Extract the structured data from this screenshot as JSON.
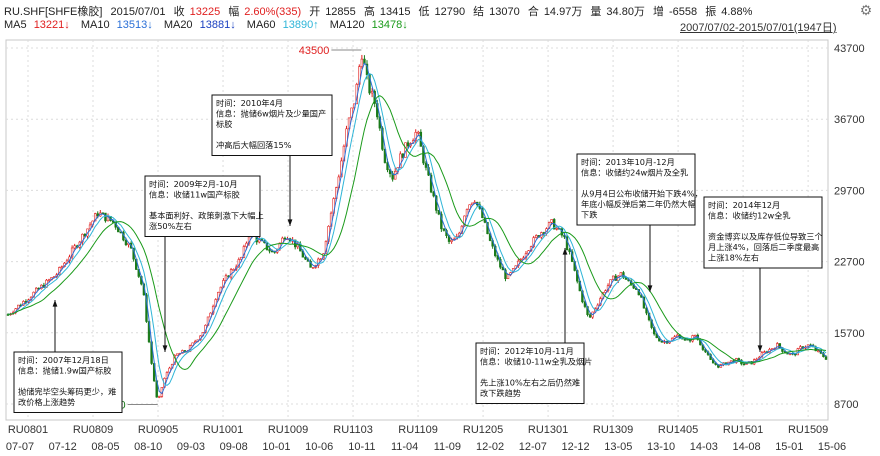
{
  "header": {
    "symbol": "RU.SHF[SHFE橡胶]",
    "date": "2015/07/01",
    "close_label": "收",
    "close_value": "13225",
    "change_label": "幅",
    "change_value": "2.60%(335)",
    "open_label": "开",
    "open_value": "12855",
    "high_label": "高",
    "high_value": "13415",
    "low_label": "低",
    "low_value": "12790",
    "settle_label": "结",
    "settle_value": "13070",
    "amount_label": "合",
    "amount_value": "14.97万",
    "volume_label": "量",
    "volume_value": "34.80万",
    "oi_label": "增",
    "oi_value": "-6558",
    "amp_label": "振",
    "amp_value": "4.88%",
    "range": "2007/07/02-2015/07/01(1947日)"
  },
  "ma": {
    "ma5_label": "MA5",
    "ma5_value": "13221↓",
    "ma10_label": "MA10",
    "ma10_value": "13513↓",
    "ma20_label": "MA20",
    "ma20_value": "13881↓",
    "ma60_label": "MA60",
    "ma60_value": "13890↑",
    "ma120_label": "MA120",
    "ma120_value": "13478↓"
  },
  "colors": {
    "up": "#e02020",
    "down": "#1a7a1a",
    "ma5": "#e02020",
    "ma10": "#2a6fd6",
    "ma20": "#1a3fc0",
    "ma60": "#2fb5d8",
    "ma120": "#1a9a1a",
    "grid": "#dcdcdc",
    "axis_text": "#333333"
  },
  "chart_data": {
    "type": "candlestick",
    "y_ticks": [
      "43700",
      "36700",
      "29700",
      "22700",
      "15700",
      "8700"
    ],
    "ylim": [
      8700,
      43700
    ],
    "contract_labels": [
      "RU0801",
      "RU0809",
      "RU0905",
      "RU1001",
      "RU1009",
      "RU1103",
      "RU1109",
      "RU1205",
      "RU1301",
      "RU1309",
      "RU1405",
      "RU1501",
      "RU1509"
    ],
    "date_labels": [
      "07-07",
      "07-12",
      "08-05",
      "08-10",
      "09-03",
      "09-08",
      "10-01",
      "10-06",
      "10-11",
      "11-04",
      "11-09",
      "12-02",
      "12-07",
      "12-12",
      "13-05",
      "13-10",
      "14-03",
      "14-08",
      "15-01",
      "15-06"
    ],
    "max_label": "43500",
    "min_label": "8650",
    "path": [
      [
        0,
        17500
      ],
      [
        0.03,
        19500
      ],
      [
        0.06,
        21500
      ],
      [
        0.085,
        24500
      ],
      [
        0.11,
        27500
      ],
      [
        0.13,
        26500
      ],
      [
        0.15,
        24000
      ],
      [
        0.165,
        20000
      ],
      [
        0.175,
        13000
      ],
      [
        0.183,
        8650
      ],
      [
        0.19,
        11000
      ],
      [
        0.205,
        13500
      ],
      [
        0.22,
        14000
      ],
      [
        0.24,
        16000
      ],
      [
        0.255,
        19500
      ],
      [
        0.27,
        21500
      ],
      [
        0.285,
        23000
      ],
      [
        0.295,
        25500
      ],
      [
        0.31,
        24500
      ],
      [
        0.325,
        23500
      ],
      [
        0.34,
        25500
      ],
      [
        0.355,
        24000
      ],
      [
        0.37,
        22000
      ],
      [
        0.385,
        23500
      ],
      [
        0.395,
        27500
      ],
      [
        0.405,
        31500
      ],
      [
        0.415,
        36000
      ],
      [
        0.425,
        39000
      ],
      [
        0.432,
        43500
      ],
      [
        0.44,
        40000
      ],
      [
        0.45,
        38000
      ],
      [
        0.46,
        33000
      ],
      [
        0.47,
        31000
      ],
      [
        0.48,
        33000
      ],
      [
        0.49,
        34500
      ],
      [
        0.5,
        35500
      ],
      [
        0.51,
        32000
      ],
      [
        0.52,
        29000
      ],
      [
        0.53,
        26000
      ],
      [
        0.54,
        24500
      ],
      [
        0.55,
        25000
      ],
      [
        0.56,
        28000
      ],
      [
        0.57,
        29000
      ],
      [
        0.58,
        27000
      ],
      [
        0.59,
        24500
      ],
      [
        0.6,
        22500
      ],
      [
        0.61,
        21000
      ],
      [
        0.62,
        22000
      ],
      [
        0.635,
        24000
      ],
      [
        0.65,
        25500
      ],
      [
        0.665,
        26500
      ],
      [
        0.68,
        25000
      ],
      [
        0.69,
        22500
      ],
      [
        0.7,
        19500
      ],
      [
        0.71,
        17000
      ],
      [
        0.72,
        18500
      ],
      [
        0.73,
        20000
      ],
      [
        0.74,
        21000
      ],
      [
        0.75,
        21500
      ],
      [
        0.76,
        20500
      ],
      [
        0.77,
        20000
      ],
      [
        0.78,
        17500
      ],
      [
        0.79,
        15500
      ],
      [
        0.8,
        14800
      ],
      [
        0.81,
        15000
      ],
      [
        0.82,
        15500
      ],
      [
        0.83,
        14800
      ],
      [
        0.84,
        15500
      ],
      [
        0.85,
        14200
      ],
      [
        0.86,
        12800
      ],
      [
        0.87,
        12400
      ],
      [
        0.88,
        12800
      ],
      [
        0.89,
        13000
      ],
      [
        0.9,
        12600
      ],
      [
        0.91,
        12800
      ],
      [
        0.92,
        13500
      ],
      [
        0.93,
        14000
      ],
      [
        0.94,
        14500
      ],
      [
        0.95,
        13800
      ],
      [
        0.96,
        13500
      ],
      [
        0.97,
        14300
      ],
      [
        0.98,
        14500
      ],
      [
        0.99,
        13800
      ],
      [
        1.0,
        13225
      ]
    ],
    "annotations": [
      {
        "lines": [
          "时间：2007年12月18日",
          "信息：抛储1.9w国产标胶",
          "",
          "抛储完毕空头筹码更少，难",
          "改价格上涨趋势"
        ]
      },
      {
        "lines": [
          "时间：2009年2月-10月",
          "信息：收储11w国产标胶",
          "",
          "基本面利好、政策刺激下大幅上",
          "涨50%左右"
        ]
      },
      {
        "lines": [
          "时间：2010年4月",
          "信息：抛储6w烟片及少量国产",
          "标胶",
          "",
          "冲高后大幅回落15%"
        ]
      },
      {
        "lines": [
          "时间：2012年10月-11月",
          "信息：收储10-11w全乳及烟片",
          "",
          "先上涨10%左右之后仍然难",
          "改下跌趋势"
        ]
      },
      {
        "lines": [
          "时间：2013年10月-12月",
          "信息：收储约24w烟片及全乳",
          "",
          "从9月4日公布收储开始下跌4%，",
          "年底小幅反弹后第二年仍然大幅",
          "下跌"
        ]
      },
      {
        "lines": [
          "时间：2014年12月",
          "信息：收储约12w全乳",
          "",
          "资金博弈以及库存低位导致三个",
          "月上涨4%，回落后二季度最高",
          "上涨18%左右"
        ]
      }
    ]
  }
}
